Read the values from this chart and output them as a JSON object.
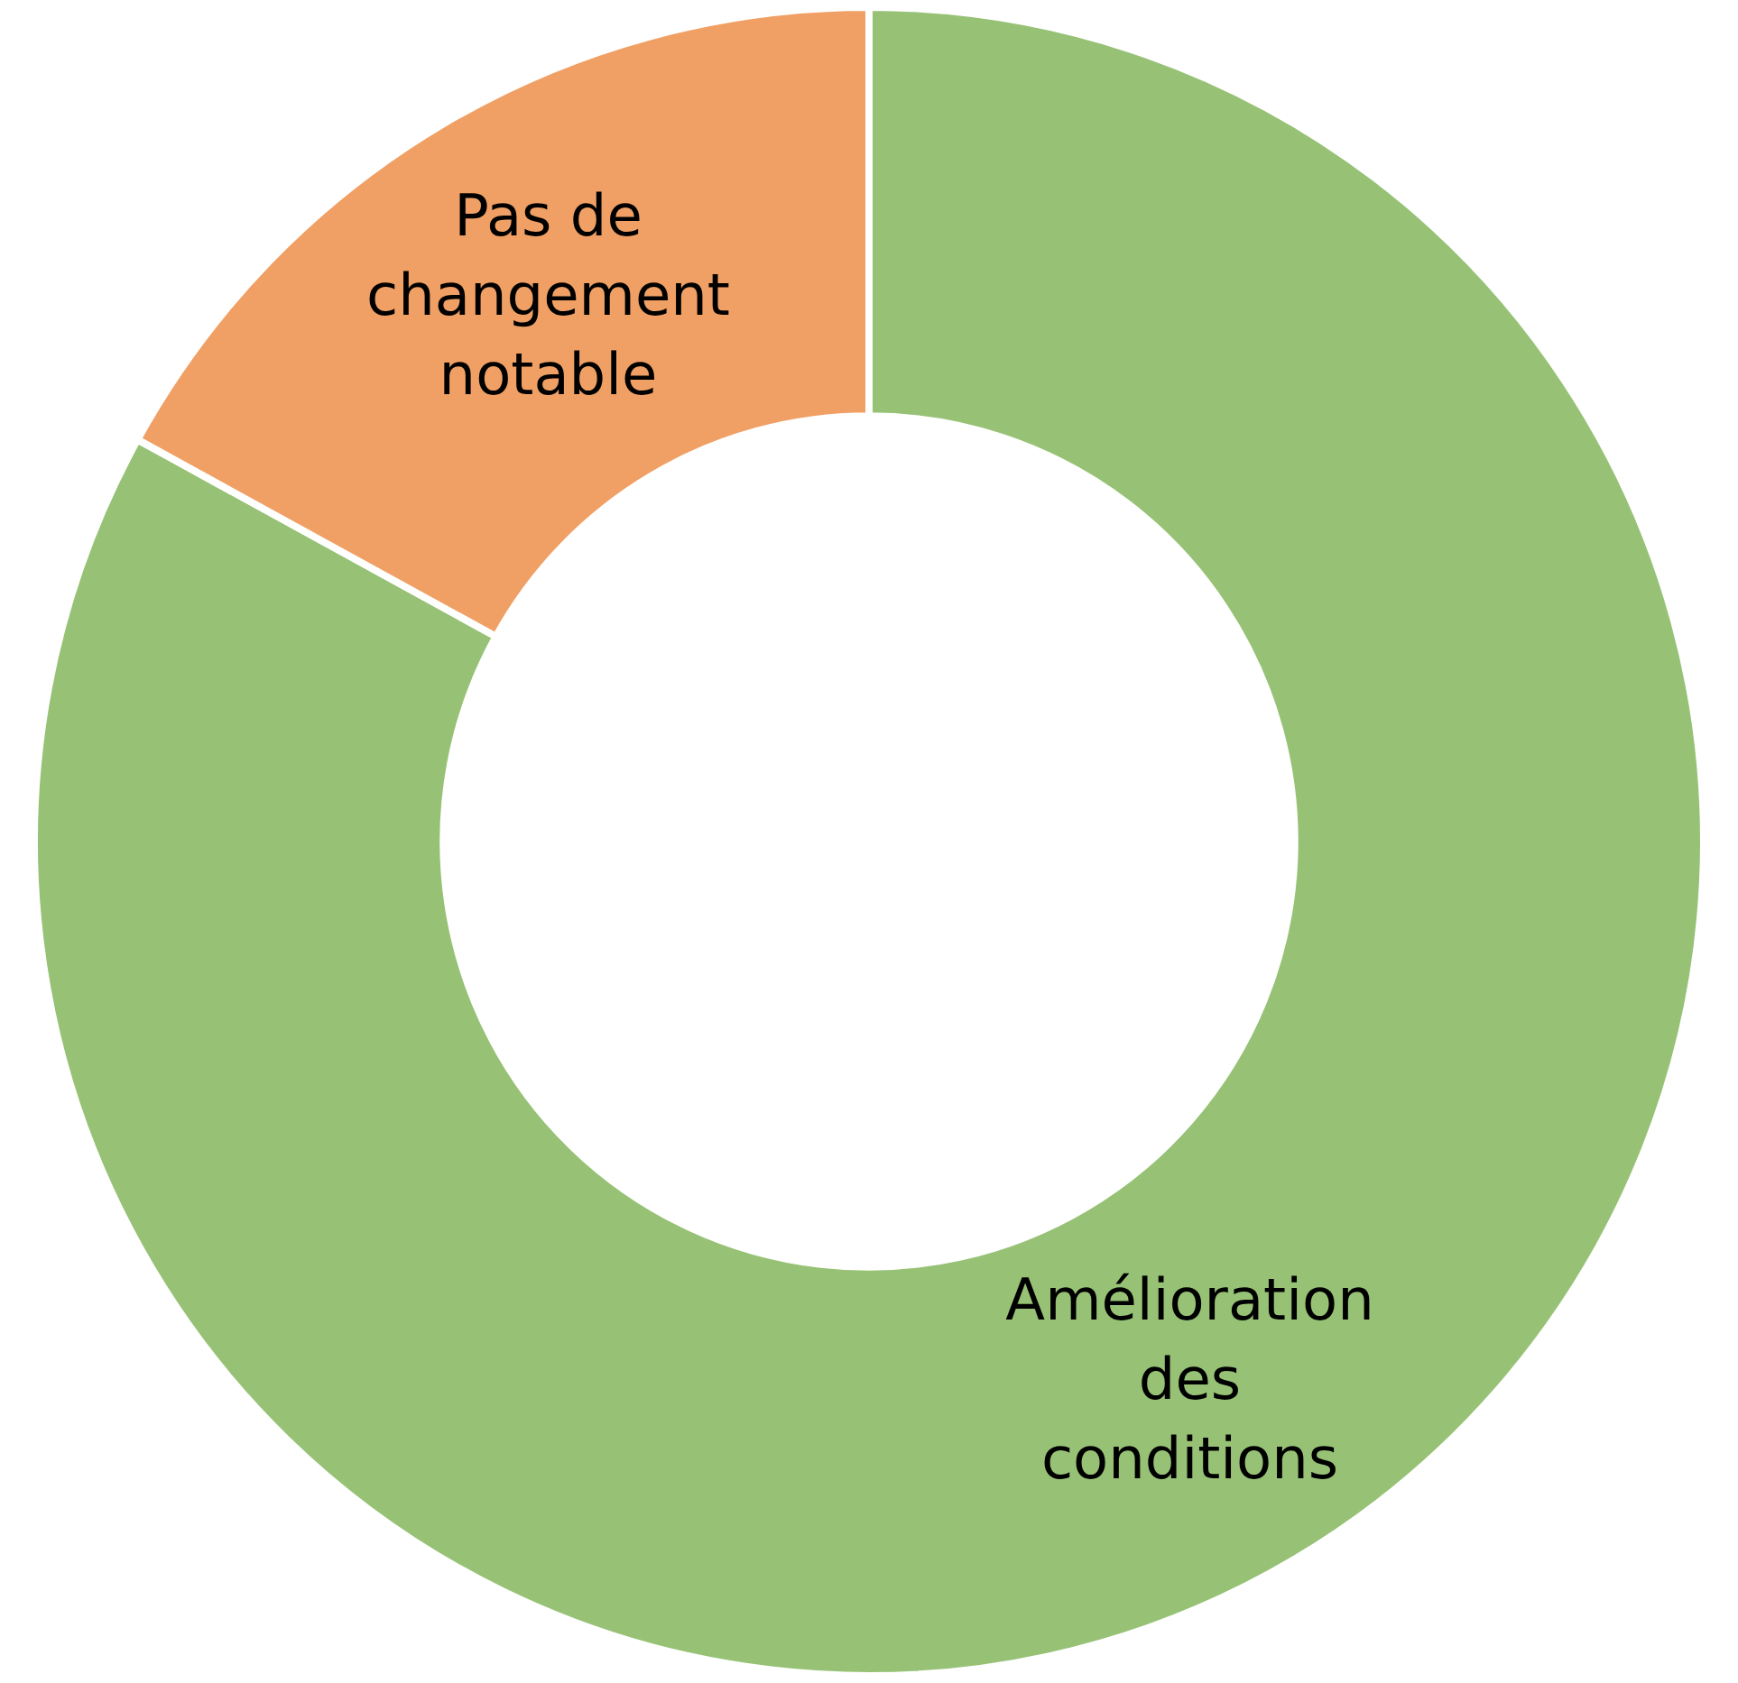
{
  "chart_data": {
    "type": "donut",
    "categories": [
      "Amélioration des conditions",
      "Pas de changement notable"
    ],
    "values": [
      83,
      17
    ],
    "colors": [
      "#97c276",
      "#f0a064"
    ],
    "legend": false
  }
}
